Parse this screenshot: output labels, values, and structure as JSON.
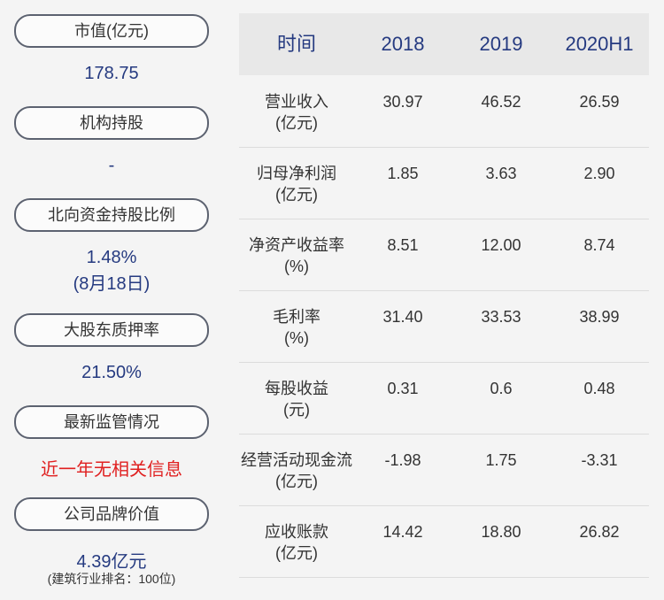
{
  "key_figures": [
    {
      "label": "市值(亿元)",
      "value": "178.75"
    },
    {
      "label": "机构持股",
      "value": "-"
    },
    {
      "label": "北向资金持股比例",
      "value": "1.48%",
      "note": "(8月18日)"
    },
    {
      "label": "大股东质押率",
      "value": "21.50%"
    },
    {
      "label": "最新监管情况",
      "value": "近一年无相关信息"
    },
    {
      "label": "公司品牌价值",
      "value": "4.39亿元",
      "note": "(建筑行业排名：100位)"
    }
  ],
  "table": {
    "header": [
      "时间",
      "2018",
      "2019",
      "2020H1"
    ],
    "rows": [
      {
        "label": "营业收入",
        "unit": "(亿元)",
        "values": [
          "30.97",
          "46.52",
          "26.59"
        ]
      },
      {
        "label": "归母净利润",
        "unit": "(亿元)",
        "values": [
          "1.85",
          "3.63",
          "2.90"
        ]
      },
      {
        "label": "净资产收益率",
        "unit": "(%)",
        "values": [
          "8.51",
          "12.00",
          "8.74"
        ]
      },
      {
        "label": "毛利率",
        "unit": "(%)",
        "values": [
          "31.40",
          "33.53",
          "38.99"
        ]
      },
      {
        "label": "每股收益",
        "unit": "(元)",
        "values": [
          "0.31",
          "0.6",
          "0.48"
        ]
      },
      {
        "label": "经营活动现金流",
        "unit": "(亿元)",
        "values": [
          "-1.98",
          "1.75",
          "-3.31"
        ]
      },
      {
        "label": "应收账款",
        "unit": "(亿元)",
        "values": [
          "14.42",
          "18.80",
          "26.82"
        ]
      }
    ]
  }
}
